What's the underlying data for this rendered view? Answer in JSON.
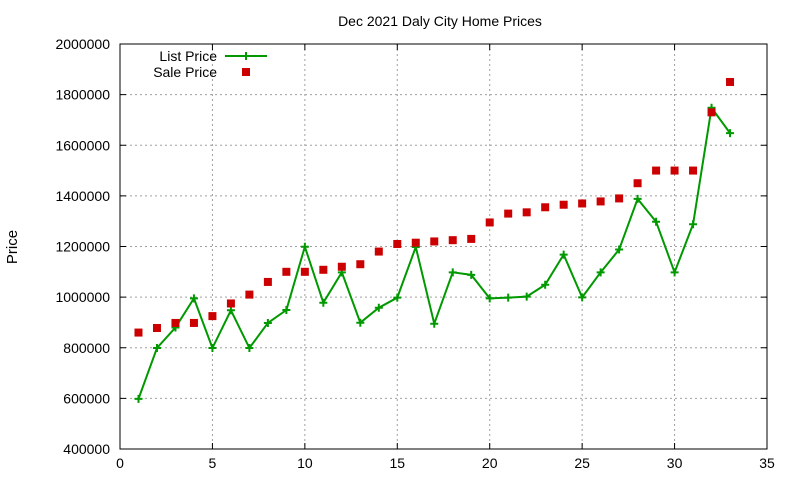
{
  "chart_data": {
    "type": "line",
    "title": "Dec 2021 Daly City Home Prices",
    "xlabel": "",
    "ylabel": "Price",
    "xlim": [
      0,
      35
    ],
    "ylim": [
      400000,
      2000000
    ],
    "xticks": [
      0,
      5,
      10,
      15,
      20,
      25,
      30,
      35
    ],
    "yticks": [
      400000,
      600000,
      800000,
      1000000,
      1200000,
      1400000,
      1600000,
      1800000,
      2000000
    ],
    "grid": true,
    "legend_position": "top-left",
    "series": [
      {
        "name": "List Price",
        "style": "line-with-plus-markers",
        "color": "#009900",
        "x": [
          1,
          2,
          3,
          4,
          5,
          6,
          7,
          8,
          9,
          10,
          11,
          12,
          13,
          14,
          15,
          16,
          17,
          18,
          19,
          20,
          21,
          22,
          23,
          24,
          25,
          26,
          27,
          28,
          29,
          30,
          31,
          32,
          33
        ],
        "values": [
          598000,
          799000,
          880000,
          995000,
          799000,
          948000,
          799000,
          898000,
          949000,
          1199000,
          978000,
          1098000,
          899000,
          958000,
          998000,
          1198000,
          895000,
          1098000,
          1088000,
          995000,
          998000,
          1002000,
          1049000,
          1168000,
          999000,
          1098000,
          1188000,
          1388000,
          1298000,
          1098000,
          1288000,
          1748000,
          1648000
        ]
      },
      {
        "name": "Sale Price",
        "style": "square-markers",
        "color": "#cc0000",
        "x": [
          1,
          2,
          3,
          4,
          5,
          6,
          7,
          8,
          9,
          10,
          11,
          12,
          13,
          14,
          15,
          16,
          17,
          18,
          19,
          20,
          21,
          22,
          23,
          24,
          25,
          26,
          27,
          28,
          29,
          30,
          31,
          32,
          33
        ],
        "values": [
          860000,
          878000,
          898000,
          898000,
          925000,
          975000,
          1010000,
          1060000,
          1100000,
          1100000,
          1108000,
          1120000,
          1130000,
          1180000,
          1210000,
          1215000,
          1220000,
          1225000,
          1230000,
          1295000,
          1330000,
          1335000,
          1355000,
          1365000,
          1370000,
          1378000,
          1390000,
          1450000,
          1500000,
          1500000,
          1500000,
          1730000,
          1850000
        ]
      }
    ]
  }
}
